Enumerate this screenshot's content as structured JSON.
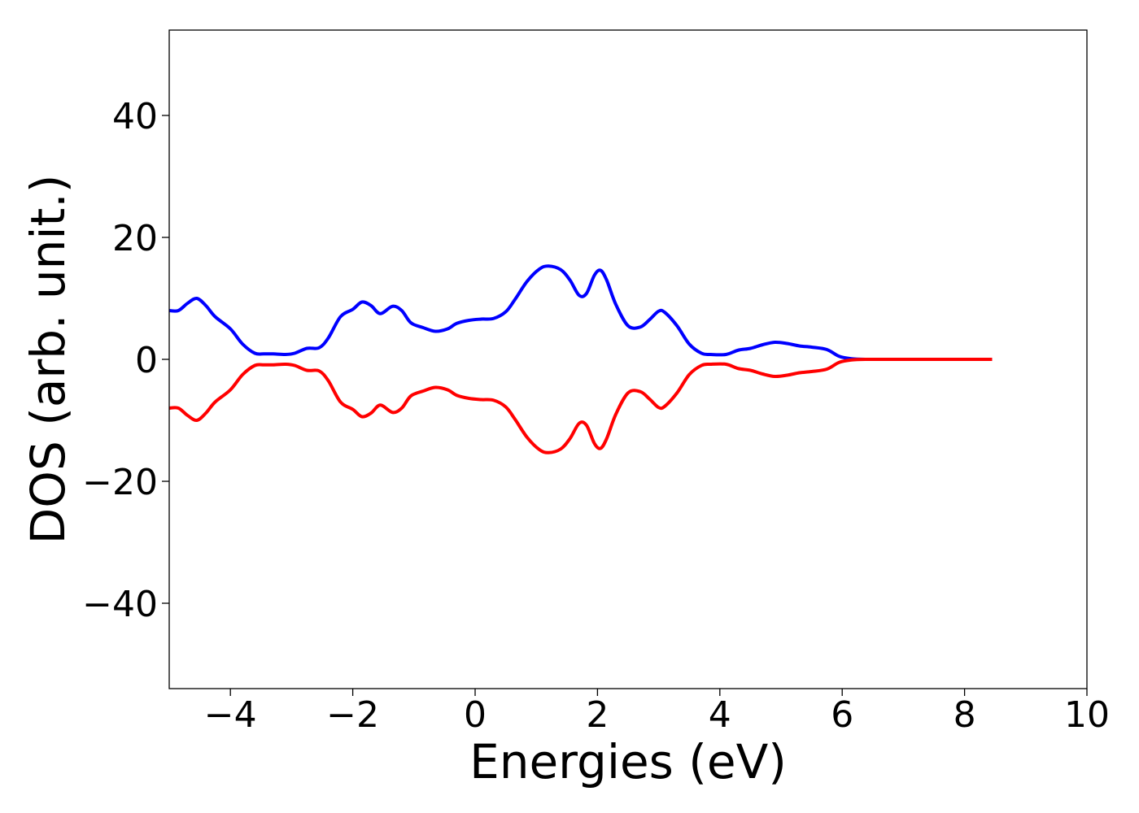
{
  "chart_data": {
    "type": "line",
    "title": "",
    "xlabel": "Energies (eV)",
    "ylabel": "DOS (arb. unit.)",
    "xlim": [
      -5,
      10
    ],
    "ylim": [
      -54,
      54
    ],
    "xticks": [
      -4,
      -2,
      0,
      2,
      4,
      6,
      8,
      10
    ],
    "yticks": [
      -40,
      -20,
      0,
      20,
      40
    ],
    "xtick_labels": [
      "−4",
      "−2",
      "0",
      "2",
      "4",
      "6",
      "8",
      "10"
    ],
    "ytick_labels": [
      "−40",
      "−20",
      "0",
      "20",
      "40"
    ],
    "grid": false,
    "legend": "none",
    "series": [
      {
        "color": "#0000ff",
        "x": [
          -5.0,
          -4.85,
          -4.7,
          -4.55,
          -4.4,
          -4.25,
          -4.0,
          -3.8,
          -3.6,
          -3.45,
          -3.3,
          -3.1,
          -2.95,
          -2.75,
          -2.55,
          -2.4,
          -2.2,
          -2.0,
          -1.85,
          -1.7,
          -1.55,
          -1.35,
          -1.2,
          -1.05,
          -0.85,
          -0.65,
          -0.45,
          -0.3,
          -0.1,
          0.1,
          0.3,
          0.5,
          0.65,
          0.85,
          1.05,
          1.2,
          1.4,
          1.55,
          1.7,
          1.82,
          1.95,
          2.05,
          2.15,
          2.3,
          2.5,
          2.7,
          2.85,
          3.0,
          3.1,
          3.3,
          3.5,
          3.7,
          3.85,
          4.1,
          4.3,
          4.5,
          4.7,
          4.9,
          5.1,
          5.3,
          5.5,
          5.75,
          5.95,
          6.15,
          6.4,
          7.0,
          8.0,
          8.45
        ],
        "y": [
          8.0,
          8.0,
          9.2,
          10.0,
          8.8,
          7.0,
          5.0,
          2.5,
          1.0,
          0.9,
          0.9,
          0.8,
          1.0,
          1.8,
          1.9,
          3.5,
          7.0,
          8.2,
          9.4,
          8.8,
          7.5,
          8.7,
          8.0,
          6.0,
          5.2,
          4.6,
          5.0,
          5.9,
          6.4,
          6.6,
          6.7,
          7.8,
          9.8,
          12.8,
          14.8,
          15.3,
          14.7,
          13.0,
          10.5,
          10.8,
          13.8,
          14.6,
          13.0,
          9.0,
          5.5,
          5.3,
          6.5,
          7.9,
          7.7,
          5.5,
          2.5,
          1.0,
          0.8,
          0.8,
          1.5,
          1.8,
          2.4,
          2.8,
          2.6,
          2.2,
          2.0,
          1.6,
          0.5,
          0.1,
          0.0,
          0.0,
          0.0,
          0.0
        ]
      },
      {
        "color": "#ff0000",
        "x": [
          -5.0,
          -4.85,
          -4.7,
          -4.55,
          -4.4,
          -4.25,
          -4.0,
          -3.8,
          -3.6,
          -3.45,
          -3.3,
          -3.1,
          -2.95,
          -2.75,
          -2.55,
          -2.4,
          -2.2,
          -2.0,
          -1.85,
          -1.7,
          -1.55,
          -1.35,
          -1.2,
          -1.05,
          -0.85,
          -0.65,
          -0.45,
          -0.3,
          -0.1,
          0.1,
          0.3,
          0.5,
          0.65,
          0.85,
          1.05,
          1.2,
          1.4,
          1.55,
          1.7,
          1.82,
          1.95,
          2.05,
          2.15,
          2.3,
          2.5,
          2.7,
          2.85,
          3.0,
          3.1,
          3.3,
          3.5,
          3.7,
          3.85,
          4.1,
          4.3,
          4.5,
          4.7,
          4.9,
          5.1,
          5.3,
          5.5,
          5.75,
          5.95,
          6.15,
          6.4,
          7.0,
          8.0,
          8.45
        ],
        "y": [
          -8.0,
          -8.0,
          -9.2,
          -10.0,
          -8.8,
          -7.0,
          -5.0,
          -2.5,
          -1.0,
          -0.9,
          -0.9,
          -0.8,
          -1.0,
          -1.8,
          -1.9,
          -3.5,
          -7.0,
          -8.2,
          -9.4,
          -8.8,
          -7.5,
          -8.7,
          -8.0,
          -6.0,
          -5.2,
          -4.6,
          -5.0,
          -5.9,
          -6.4,
          -6.6,
          -6.7,
          -7.8,
          -9.8,
          -12.8,
          -14.8,
          -15.3,
          -14.7,
          -13.0,
          -10.5,
          -10.8,
          -13.8,
          -14.6,
          -13.0,
          -9.0,
          -5.5,
          -5.3,
          -6.5,
          -7.9,
          -7.7,
          -5.5,
          -2.5,
          -1.0,
          -0.8,
          -0.8,
          -1.5,
          -1.8,
          -2.4,
          -2.8,
          -2.6,
          -2.2,
          -2.0,
          -1.6,
          -0.5,
          -0.1,
          0.0,
          0.0,
          0.0,
          0.0
        ]
      }
    ]
  }
}
